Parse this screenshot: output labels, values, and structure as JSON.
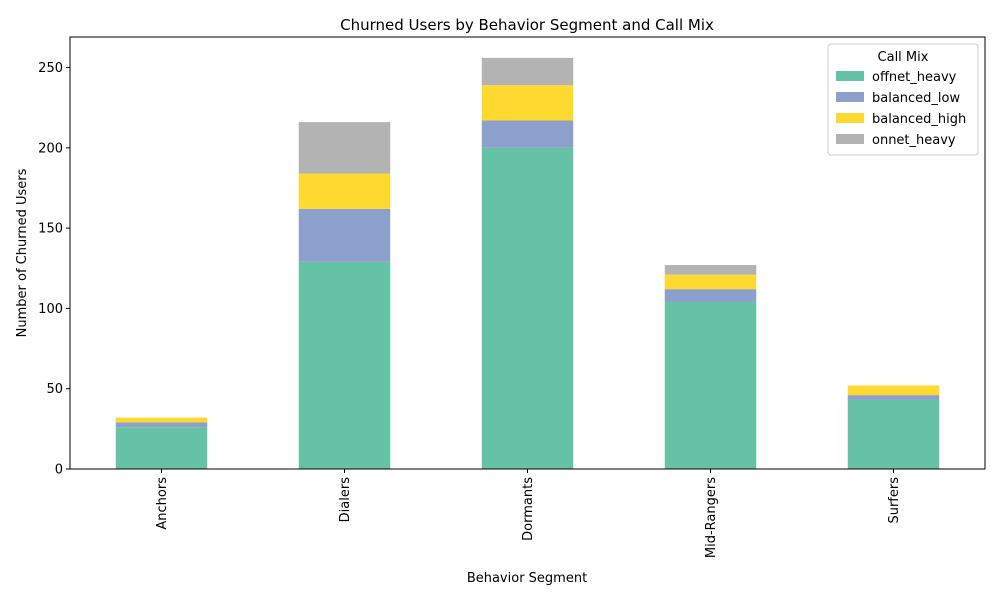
{
  "chart_data": {
    "type": "bar",
    "stacked": true,
    "title": "Churned Users by Behavior Segment and Call Mix",
    "xlabel": "Behavior Segment",
    "ylabel": "Number of Churned Users",
    "categories": [
      "Anchors",
      "Dialers",
      "Dormants",
      "Mid-Rangers",
      "Surfers"
    ],
    "series": [
      {
        "name": "offnet_heavy",
        "color": "#66c2a5",
        "values": [
          26,
          129,
          200,
          104,
          43
        ]
      },
      {
        "name": "balanced_low",
        "color": "#8da0cb",
        "values": [
          3,
          33,
          17,
          8,
          3
        ]
      },
      {
        "name": "balanced_high",
        "color": "#ffd92f",
        "values": [
          3,
          22,
          22,
          9,
          6
        ]
      },
      {
        "name": "onnet_heavy",
        "color": "#b3b3b3",
        "values": [
          0,
          32,
          17,
          6,
          0
        ]
      }
    ],
    "ylim": [
      0,
      269
    ],
    "yticks": [
      0,
      50,
      100,
      150,
      200,
      250
    ],
    "grid": false,
    "legend": {
      "title": "Call Mix",
      "placement": "top-right"
    }
  }
}
